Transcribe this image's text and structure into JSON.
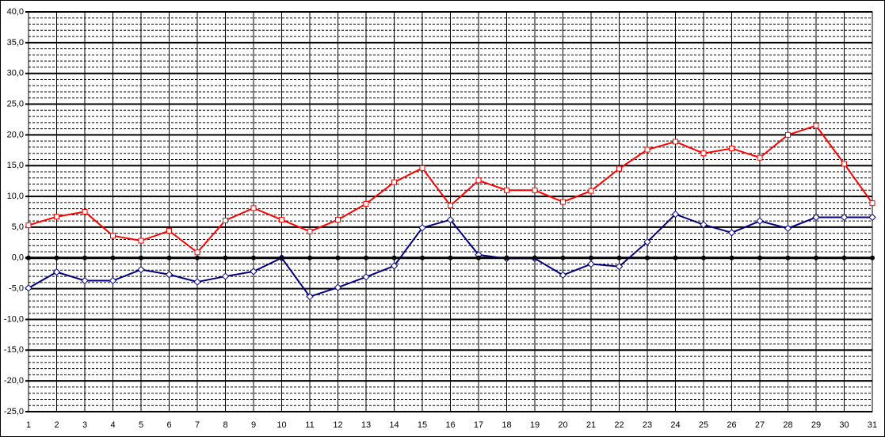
{
  "chart_data": {
    "type": "line",
    "categories": [
      "1",
      "2",
      "3",
      "4",
      "5",
      "6",
      "7",
      "8",
      "9",
      "10",
      "11",
      "12",
      "13",
      "14",
      "15",
      "16",
      "17",
      "18",
      "19",
      "20",
      "21",
      "22",
      "23",
      "24",
      "25",
      "26",
      "27",
      "28",
      "29",
      "30",
      "31"
    ],
    "series": [
      {
        "color": "#ff0000",
        "marker": "square",
        "values": [
          5.3,
          6.7,
          7.5,
          3.6,
          2.8,
          4.4,
          0.9,
          6.1,
          8.1,
          6.2,
          4.3,
          6.2,
          8.8,
          12.3,
          14.6,
          8.5,
          12.6,
          11.0,
          11.0,
          9.1,
          10.9,
          14.5,
          17.6,
          18.9,
          17.0,
          17.8,
          16.3,
          20.0,
          21.5,
          15.3,
          8.9
        ]
      },
      {
        "color": "#000080",
        "marker": "diamond",
        "values": [
          -4.9,
          -2.3,
          -3.7,
          -3.7,
          -1.9,
          -2.7,
          -3.9,
          -3.0,
          -2.2,
          0.0,
          -6.3,
          -4.8,
          -3.1,
          -1.3,
          4.9,
          6.2,
          0.5,
          -0.1,
          -0.1,
          -2.8,
          -1.0,
          -1.4,
          2.6,
          7.1,
          5.4,
          4.1,
          6.0,
          4.8,
          6.6,
          6.6,
          6.6
        ]
      },
      {
        "color": "#000000",
        "marker": "circle",
        "values": [
          0,
          0,
          0,
          0,
          0,
          0,
          0,
          0,
          0,
          0,
          0,
          0,
          0,
          0,
          0,
          0,
          0,
          0,
          0,
          0,
          0,
          0,
          0,
          0,
          0,
          0,
          0,
          0,
          0,
          0,
          0
        ]
      }
    ],
    "ylim": [
      -25,
      40
    ],
    "yticks": [
      {
        "value": -25,
        "label": "-25,0"
      },
      {
        "value": -20,
        "label": "-20,0"
      },
      {
        "value": -15,
        "label": "-15,0"
      },
      {
        "value": -10,
        "label": "-10,0"
      },
      {
        "value": -5,
        "label": "-5,0"
      },
      {
        "value": 0,
        "label": "0,0"
      },
      {
        "value": 5,
        "label": "5,0"
      },
      {
        "value": 10,
        "label": "10,0"
      },
      {
        "value": 15,
        "label": "15,0"
      },
      {
        "value": 20,
        "label": "20,0"
      },
      {
        "value": 25,
        "label": "25,0"
      },
      {
        "value": 30,
        "label": "30,0"
      },
      {
        "value": 35,
        "label": "35,0"
      },
      {
        "value": 40,
        "label": "40,0"
      }
    ],
    "grid": true,
    "minor_grid_step": 1
  }
}
